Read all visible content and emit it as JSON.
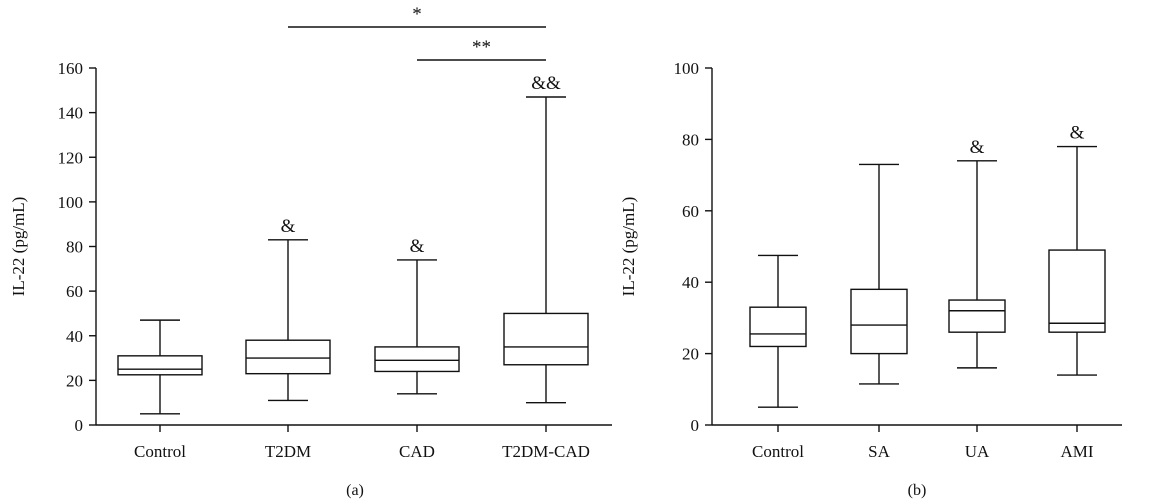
{
  "chart_data": [
    {
      "type": "box",
      "panel_label": "(a)",
      "ylabel": "IL-22 (pg/mL)",
      "ylim": [
        0,
        160
      ],
      "yticks": [
        0,
        20,
        40,
        60,
        80,
        100,
        120,
        140,
        160
      ],
      "categories": [
        "Control",
        "T2DM",
        "CAD",
        "T2DM-CAD"
      ],
      "boxes": [
        {
          "category": "Control",
          "min": 5,
          "q1": 22.5,
          "median": 25,
          "q3": 31,
          "max": 47,
          "mark": ""
        },
        {
          "category": "T2DM",
          "min": 11,
          "q1": 23,
          "median": 30,
          "q3": 38,
          "max": 83,
          "mark": "&"
        },
        {
          "category": "CAD",
          "min": 14,
          "q1": 24,
          "median": 29,
          "q3": 35,
          "max": 74,
          "mark": "&"
        },
        {
          "category": "T2DM-CAD",
          "min": 10,
          "q1": 27,
          "median": 35,
          "q3": 50,
          "max": 147,
          "mark": "&&"
        }
      ],
      "significance": [
        {
          "from": "T2DM",
          "to": "T2DM-CAD",
          "label": "*"
        },
        {
          "from": "CAD",
          "to": "T2DM-CAD",
          "label": "**"
        }
      ]
    },
    {
      "type": "box",
      "panel_label": "(b)",
      "ylabel": "IL-22 (pg/mL)",
      "ylim": [
        0,
        100
      ],
      "yticks": [
        0,
        20,
        40,
        60,
        80,
        100
      ],
      "categories": [
        "Control",
        "SA",
        "UA",
        "AMI"
      ],
      "boxes": [
        {
          "category": "Control",
          "min": 5,
          "q1": 22,
          "median": 25.5,
          "q3": 33,
          "max": 47.5,
          "mark": ""
        },
        {
          "category": "SA",
          "min": 11.5,
          "q1": 20,
          "median": 28,
          "q3": 38,
          "max": 73,
          "mark": ""
        },
        {
          "category": "UA",
          "min": 16,
          "q1": 26,
          "median": 32,
          "q3": 35,
          "max": 74,
          "mark": "&"
        },
        {
          "category": "AMI",
          "min": 14,
          "q1": 26,
          "median": 28.5,
          "q3": 49,
          "max": 78,
          "mark": "&"
        }
      ],
      "significance": []
    }
  ]
}
